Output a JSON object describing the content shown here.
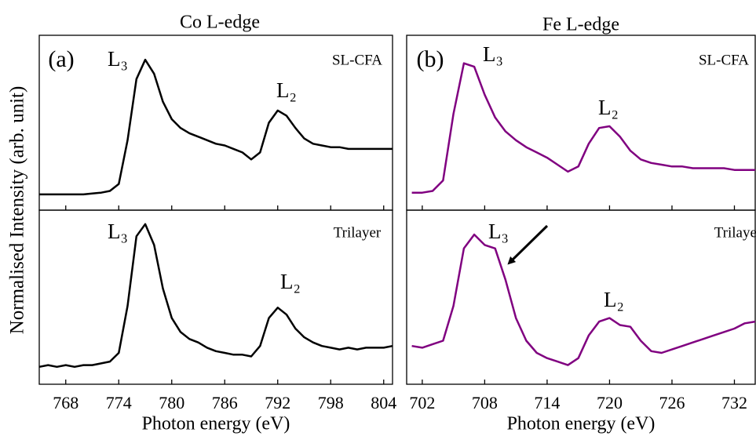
{
  "chart_data": [
    {
      "type": "line",
      "title": "Co L-edge",
      "ylabel": "Normalised Intensity (arb. unit)",
      "panel_label": "(a)",
      "sample": "SL-CFA",
      "peak_labels": [
        "L₃",
        "L₂"
      ],
      "color": "#000000",
      "x": [
        765,
        766,
        767,
        768,
        769,
        770,
        771,
        772,
        773,
        774,
        775,
        776,
        777,
        778,
        779,
        780,
        781,
        782,
        783,
        784,
        785,
        786,
        787,
        788,
        789,
        790,
        791,
        792,
        793,
        794,
        795,
        796,
        797,
        798,
        799,
        800,
        801,
        802,
        803,
        804,
        805
      ],
      "values": [
        0.09,
        0.09,
        0.09,
        0.09,
        0.09,
        0.09,
        0.095,
        0.1,
        0.11,
        0.15,
        0.4,
        0.75,
        0.86,
        0.78,
        0.62,
        0.52,
        0.47,
        0.44,
        0.42,
        0.4,
        0.38,
        0.37,
        0.35,
        0.33,
        0.29,
        0.33,
        0.5,
        0.57,
        0.54,
        0.47,
        0.41,
        0.38,
        0.37,
        0.36,
        0.36,
        0.35,
        0.35,
        0.35,
        0.35,
        0.35,
        0.35
      ],
      "xlim": [
        765,
        805
      ],
      "ylim": [
        0,
        1
      ],
      "xticks": [
        768,
        774,
        780,
        786,
        792,
        798,
        804
      ]
    },
    {
      "type": "line",
      "xlabel": "Photon energy (eV)",
      "sample": "Trilayer",
      "peak_labels": [
        "L₃",
        "L₂"
      ],
      "color": "#000000",
      "x": [
        765,
        766,
        767,
        768,
        769,
        770,
        771,
        772,
        773,
        774,
        775,
        776,
        777,
        778,
        779,
        780,
        781,
        782,
        783,
        784,
        785,
        786,
        787,
        788,
        789,
        790,
        791,
        792,
        793,
        794,
        795,
        796,
        797,
        798,
        799,
        800,
        801,
        802,
        803,
        804,
        805
      ],
      "values": [
        0.1,
        0.11,
        0.1,
        0.11,
        0.1,
        0.11,
        0.11,
        0.12,
        0.13,
        0.18,
        0.45,
        0.85,
        0.92,
        0.8,
        0.55,
        0.38,
        0.3,
        0.26,
        0.24,
        0.21,
        0.19,
        0.18,
        0.17,
        0.17,
        0.16,
        0.22,
        0.38,
        0.44,
        0.4,
        0.32,
        0.27,
        0.24,
        0.22,
        0.21,
        0.2,
        0.21,
        0.2,
        0.21,
        0.21,
        0.21,
        0.22
      ],
      "xlim": [
        765,
        805
      ],
      "ylim": [
        0,
        1
      ],
      "xticks": [
        768,
        774,
        780,
        786,
        792,
        798,
        804
      ]
    },
    {
      "type": "line",
      "title": "Fe L-edge",
      "panel_label": "(b)",
      "sample": "SL-CFA",
      "peak_labels": [
        "L₃",
        "L₂"
      ],
      "color": "#800080",
      "x": [
        701,
        702,
        703,
        704,
        705,
        706,
        707,
        708,
        709,
        710,
        711,
        712,
        713,
        714,
        715,
        716,
        717,
        718,
        719,
        720,
        721,
        722,
        723,
        724,
        725,
        726,
        727,
        728,
        729,
        730,
        731,
        732,
        733,
        734
      ],
      "values": [
        0.1,
        0.1,
        0.11,
        0.17,
        0.55,
        0.84,
        0.82,
        0.66,
        0.53,
        0.45,
        0.4,
        0.36,
        0.33,
        0.3,
        0.26,
        0.22,
        0.25,
        0.38,
        0.47,
        0.48,
        0.42,
        0.34,
        0.29,
        0.27,
        0.26,
        0.25,
        0.25,
        0.24,
        0.24,
        0.24,
        0.24,
        0.23,
        0.23,
        0.23
      ],
      "xlim": [
        700.5,
        734
      ],
      "ylim": [
        0,
        1
      ],
      "xticks": [
        702,
        708,
        714,
        720,
        726,
        732
      ]
    },
    {
      "type": "line",
      "xlabel": "Photon energy (eV)",
      "sample": "Trilayer",
      "peak_labels": [
        "L₃",
        "L₂"
      ],
      "color": "#800080",
      "x": [
        701,
        702,
        703,
        704,
        705,
        706,
        707,
        708,
        709,
        710,
        711,
        712,
        713,
        714,
        715,
        716,
        717,
        718,
        719,
        720,
        721,
        722,
        723,
        724,
        725,
        726,
        727,
        728,
        729,
        730,
        731,
        732,
        733,
        734
      ],
      "values": [
        0.22,
        0.21,
        0.23,
        0.25,
        0.45,
        0.78,
        0.86,
        0.8,
        0.78,
        0.6,
        0.38,
        0.25,
        0.18,
        0.15,
        0.13,
        0.11,
        0.15,
        0.28,
        0.36,
        0.38,
        0.34,
        0.33,
        0.25,
        0.19,
        0.18,
        0.2,
        0.22,
        0.24,
        0.26,
        0.28,
        0.3,
        0.32,
        0.35,
        0.36
      ],
      "xlim": [
        700.5,
        734
      ],
      "ylim": [
        0,
        1
      ],
      "xticks": [
        702,
        708,
        714,
        720,
        726,
        732
      ]
    }
  ]
}
